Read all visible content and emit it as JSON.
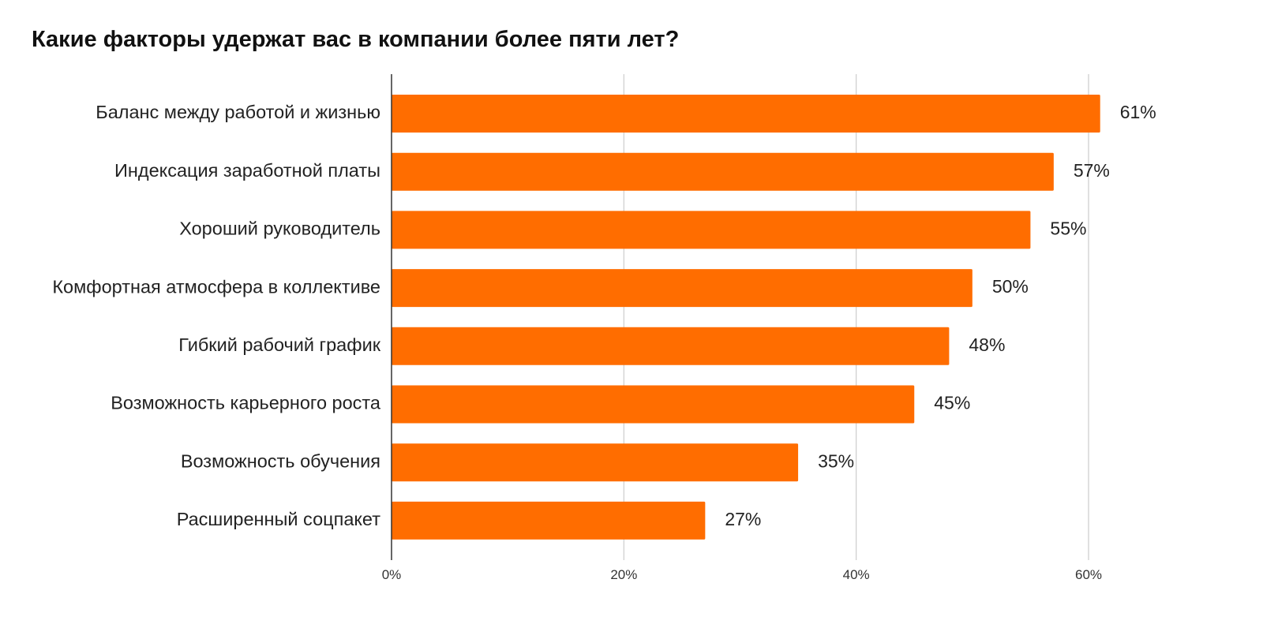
{
  "chart_data": {
    "type": "bar",
    "orientation": "horizontal",
    "title": "Какие факторы удержат вас в компании более пяти лет?",
    "xlabel": "",
    "ylabel": "",
    "categories": [
      "Баланс между работой и жизнью",
      "Индексация заработной платы",
      "Хороший руководитель",
      "Комфортная атмосфера в коллективе",
      "Гибкий рабочий график",
      "Возможность карьерного роста",
      "Возможность обучения",
      "Расширенный соцпакет"
    ],
    "values": [
      61,
      57,
      55,
      50,
      48,
      45,
      35,
      27
    ],
    "value_labels": [
      "61%",
      "57%",
      "55%",
      "50%",
      "48%",
      "45%",
      "35%",
      "27%"
    ],
    "xlim": [
      0,
      70
    ],
    "x_ticks": [
      0,
      20,
      40,
      60
    ],
    "x_tick_labels": [
      "0%",
      "20%",
      "40%",
      "60%"
    ],
    "grid": "vertical",
    "legend": "none",
    "bar_color": "#FF6D00"
  }
}
